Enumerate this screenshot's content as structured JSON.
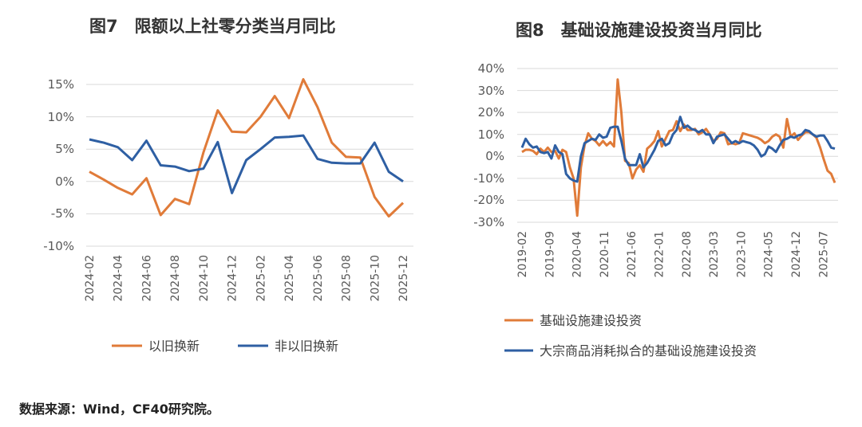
{
  "source_note": "数据来源：Wind，CF40研究院。",
  "colors": {
    "orange": "#e07b39",
    "blue": "#2e5fa3"
  },
  "chart_data": [
    {
      "id": "fig7",
      "type": "line",
      "title": "图7　限额以上社零分类当月同比",
      "categories": [
        "2024-02",
        "2024-03",
        "2024-04",
        "2024-05",
        "2024-06",
        "2024-07",
        "2024-08",
        "2024-09",
        "2024-10",
        "2024-11",
        "2024-12",
        "2025-01",
        "2025-02",
        "2025-03",
        "2025-04",
        "2025-05",
        "2025-06",
        "2025-07",
        "2025-08",
        "2025-09",
        "2025-10",
        "2025-11",
        "2025-12"
      ],
      "x_tick_labels": [
        "2024-02",
        "2024-04",
        "2024-06",
        "2024-08",
        "2024-10",
        "2024-12",
        "2025-02",
        "2025-04",
        "2025-06",
        "2025-08",
        "2025-10",
        "2025-12"
      ],
      "y_ticks": [
        "15%",
        "10%",
        "5%",
        "0%",
        "-5%",
        "-10%"
      ],
      "ylim": [
        -10,
        15
      ],
      "series": [
        {
          "name": "以旧换新",
          "color": "#e07b39",
          "values": [
            1.5,
            0.3,
            -1.0,
            -2.0,
            0.5,
            -5.2,
            -2.7,
            -3.5,
            4.5,
            11.0,
            7.7,
            7.6,
            10.0,
            13.2,
            9.8,
            15.8,
            11.5,
            6.0,
            3.8,
            3.7,
            -2.4,
            -5.4,
            -3.3
          ]
        },
        {
          "name": "非以旧换新",
          "color": "#2e5fa3",
          "values": [
            6.5,
            6.0,
            5.3,
            3.3,
            6.3,
            2.5,
            2.3,
            1.6,
            2.0,
            6.1,
            -1.8,
            3.3,
            5.0,
            6.8,
            6.9,
            7.1,
            3.5,
            2.9,
            2.8,
            2.8,
            6.0,
            1.5,
            0.0
          ]
        }
      ]
    },
    {
      "id": "fig8",
      "type": "line",
      "title": "图8　基础设施建设投资当月同比",
      "x_tick_labels": [
        "2019-02",
        "2019-09",
        "2020-04",
        "2020-11",
        "2021-06",
        "2022-01",
        "2022-08",
        "2023-03",
        "2023-10",
        "2024-05",
        "2024-12",
        "2025-07"
      ],
      "y_ticks": [
        "40%",
        "30%",
        "20%",
        "10%",
        "0%",
        "-10%",
        "-20%",
        "-30%"
      ],
      "ylim": [
        -30,
        40
      ],
      "x_start": "2019-02",
      "x_end": "2025-10",
      "series": [
        {
          "name": "基础设施建设投资",
          "color": "#e07b39",
          "values": [
            2.0,
            3.0,
            3.0,
            2.5,
            1.0,
            3.5,
            2.0,
            4.0,
            2.0,
            2.5,
            -1.0,
            3.0,
            2.0,
            -5.0,
            -10.0,
            -27.0,
            -5.0,
            5.0,
            10.5,
            8.0,
            7.0,
            5.0,
            7.0,
            5.0,
            6.5,
            4.5,
            35.0,
            20.0,
            -2.0,
            -3.0,
            -10.0,
            -6.0,
            -4.0,
            -7.0,
            3.5,
            5.0,
            7.0,
            11.5,
            4.5,
            8.0,
            11.5,
            12.0,
            16.0,
            11.5,
            14.5,
            12.0,
            12.0,
            12.5,
            10.0,
            11.0,
            12.5,
            10.0,
            7.0,
            8.0,
            11.0,
            10.5,
            5.5,
            6.0,
            5.5,
            6.0,
            10.5,
            10.0,
            9.5,
            9.0,
            8.5,
            7.5,
            6.0,
            7.0,
            9.0,
            10.0,
            9.0,
            4.0,
            17.0,
            9.0,
            10.5,
            7.5,
            9.5,
            11.0,
            11.0,
            10.0,
            8.5,
            4.0,
            -1.5,
            -6.5,
            -8.0,
            -12.0
          ]
        },
        {
          "name": "大宗商品消耗拟合的基础设施建设投资",
          "color": "#2e5fa3",
          "values": [
            4.0,
            8.0,
            5.5,
            4.0,
            4.5,
            2.0,
            1.5,
            2.0,
            -1.0,
            5.0,
            2.0,
            1.0,
            -8.0,
            -10.0,
            -11.0,
            -11.5,
            0.0,
            6.0,
            7.0,
            8.0,
            7.5,
            10.0,
            8.5,
            9.0,
            13.0,
            13.5,
            13.5,
            7.0,
            -1.0,
            -4.0,
            -4.0,
            -4.0,
            1.0,
            -5.0,
            -3.0,
            0.0,
            3.0,
            7.0,
            8.0,
            5.0,
            6.0,
            10.0,
            12.0,
            18.0,
            13.0,
            14.0,
            12.5,
            12.0,
            11.0,
            12.0,
            10.0,
            10.0,
            6.0,
            9.0,
            9.5,
            10.0,
            8.0,
            6.0,
            7.0,
            6.0,
            7.0,
            6.5,
            6.0,
            5.0,
            3.0,
            0.0,
            1.0,
            4.5,
            3.5,
            2.0,
            5.0,
            7.5,
            8.0,
            9.0,
            8.5,
            9.5,
            10.0,
            12.0,
            11.5,
            10.0,
            9.0,
            9.5,
            9.5,
            7.0,
            4.0,
            3.5
          ]
        }
      ]
    }
  ]
}
